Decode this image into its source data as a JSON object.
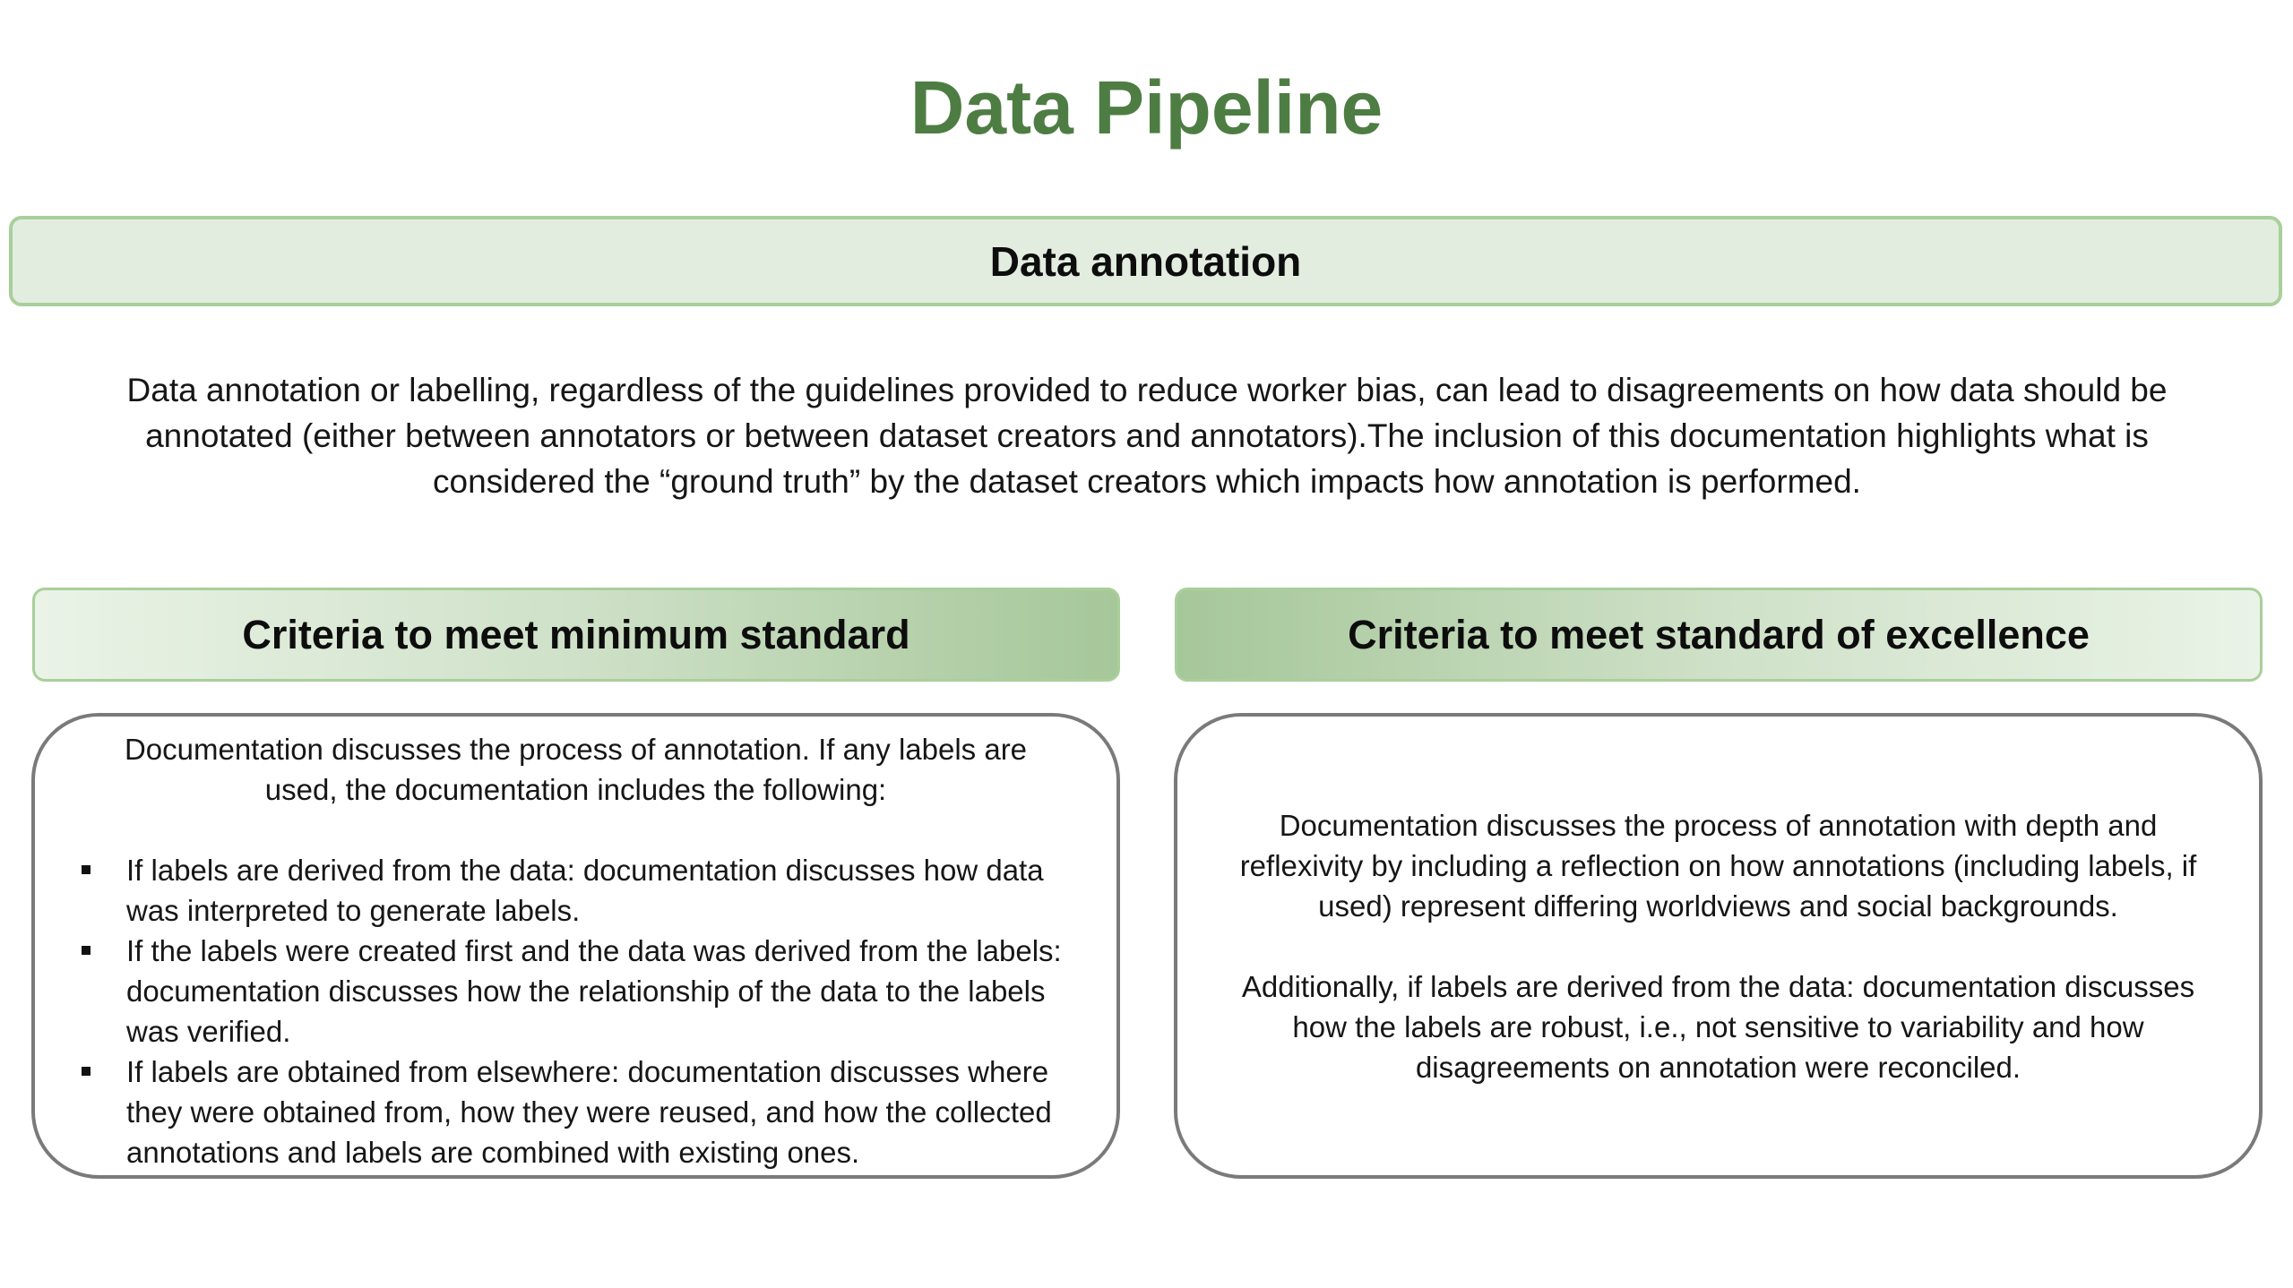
{
  "title": "Data Pipeline",
  "section": {
    "label": "Data annotation"
  },
  "intro": "Data annotation or labelling, regardless of the guidelines provided to reduce worker bias, can lead to disagreements on how data should be annotated (either between annotators or between dataset creators and annotators).The inclusion of this documentation highlights what is considered the “ground truth” by the dataset creators which impacts how annotation is performed.",
  "minimum": {
    "heading": "Criteria to meet minimum standard",
    "intro": "Documentation discusses the process of annotation. If any labels are used, the documentation includes the following:",
    "bullets": [
      "If labels are derived from the data: documentation discusses how data was interpreted to generate labels.",
      "If the labels were created first and the data was derived from the labels: documentation discusses how the relationship of the data to the labels was verified.",
      "If labels are obtained from elsewhere: documentation discusses where they were obtained from, how they were reused, and how the collected annotations and labels are combined with existing ones."
    ]
  },
  "excellence": {
    "heading": "Criteria to meet standard of excellence",
    "paragraphs": [
      "Documentation discusses the process of annotation with depth and reflexivity by including a reflection on how annotations (including labels, if used) represent differing worldviews and social backgrounds.",
      "Additionally, if labels are derived from the data: documentation discusses how the labels are robust, i.e., not sensitive to variability and how disagreements on annotation were reconciled."
    ]
  },
  "colors": {
    "title": "#4e7d43",
    "bar_fill": "#e2ede0",
    "bar_border": "#a9cf9a",
    "gradient_dark": "#a6c79a",
    "box_border": "#7a7a7a"
  }
}
